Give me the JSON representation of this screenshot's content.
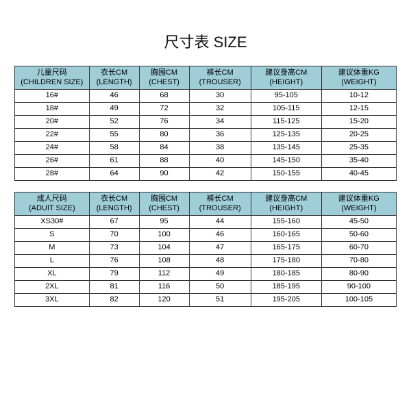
{
  "title": "尺寸表 SIZE",
  "colors": {
    "header_bg": "#9fcdd8",
    "border": "#333333",
    "text": "#000000",
    "background": "#ffffff"
  },
  "children_table": {
    "headers": [
      {
        "cn": "儿童尺码",
        "en": "(CHILDREN SIZE)"
      },
      {
        "cn": "衣长CM",
        "en": "(LENGTH)"
      },
      {
        "cn": "胸围CM",
        "en": "(CHEST)"
      },
      {
        "cn": "裤长CM",
        "en": "(TROUSER)"
      },
      {
        "cn": "建议身高CM",
        "en": "(HEIGHT)"
      },
      {
        "cn": "建议体重KG",
        "en": "(WEIGHT)"
      }
    ],
    "rows": [
      [
        "16#",
        "46",
        "68",
        "30",
        "95-105",
        "10-12"
      ],
      [
        "18#",
        "49",
        "72",
        "32",
        "105-115",
        "12-15"
      ],
      [
        "20#",
        "52",
        "76",
        "34",
        "115-125",
        "15-20"
      ],
      [
        "22#",
        "55",
        "80",
        "36",
        "125-135",
        "20-25"
      ],
      [
        "24#",
        "58",
        "84",
        "38",
        "135-145",
        "25-35"
      ],
      [
        "26#",
        "61",
        "88",
        "40",
        "145-150",
        "35-40"
      ],
      [
        "28#",
        "64",
        "90",
        "42",
        "150-155",
        "40-45"
      ]
    ]
  },
  "adult_table": {
    "headers": [
      {
        "cn": "成人尺码",
        "en": "(ADUIT SIZE)"
      },
      {
        "cn": "衣长CM",
        "en": "(LENGTH)"
      },
      {
        "cn": "胸围CM",
        "en": "(CHEST)"
      },
      {
        "cn": "裤长CM",
        "en": "(TROUSER)"
      },
      {
        "cn": "建议身高CM",
        "en": "(HEIGHT)"
      },
      {
        "cn": "建议体重KG",
        "en": "(WEIGHT)"
      }
    ],
    "rows": [
      [
        "XS30#",
        "67",
        "95",
        "44",
        "155-160",
        "45-50"
      ],
      [
        "S",
        "70",
        "100",
        "46",
        "160-165",
        "50-60"
      ],
      [
        "M",
        "73",
        "104",
        "47",
        "165-175",
        "60-70"
      ],
      [
        "L",
        "76",
        "108",
        "48",
        "175-180",
        "70-80"
      ],
      [
        "XL",
        "79",
        "112",
        "49",
        "180-185",
        "80-90"
      ],
      [
        "2XL",
        "81",
        "116",
        "50",
        "185-195",
        "90-100"
      ],
      [
        "3XL",
        "82",
        "120",
        "51",
        "195-205",
        "100-105"
      ]
    ]
  }
}
